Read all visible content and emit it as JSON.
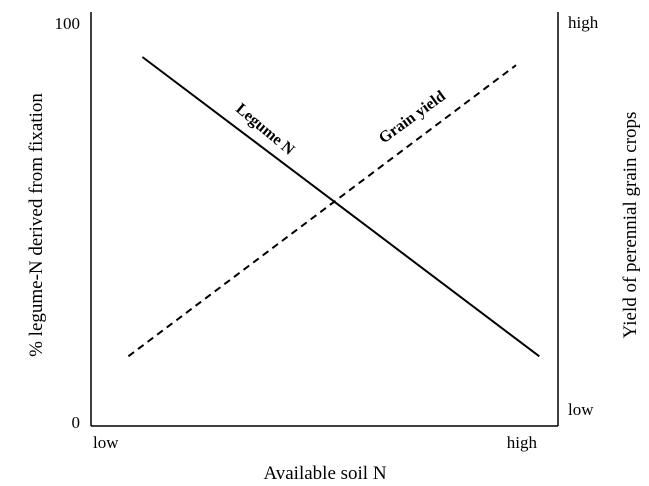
{
  "chart_data": {
    "type": "line",
    "xlabel": "Available soil N",
    "ylabel_left": "% legume-N derived from fixation",
    "ylabel_right": "Yield of perennial grain crops",
    "x_ticks": [
      "low",
      "high"
    ],
    "y_left_ticks": [
      "0",
      "100"
    ],
    "y_right_ticks": [
      "low",
      "high"
    ],
    "xlim": [
      0,
      100
    ],
    "ylim": [
      0,
      100
    ],
    "grid": false,
    "legend": "none",
    "series": [
      {
        "name": "Legume N",
        "style": "solid",
        "color": "#000000",
        "x": [
          11,
          96
        ],
        "y": [
          90,
          17
        ]
      },
      {
        "name": "Grain yield",
        "style": "dashed",
        "color": "#000000",
        "x": [
          8,
          91
        ],
        "y": [
          17,
          88
        ]
      }
    ]
  }
}
